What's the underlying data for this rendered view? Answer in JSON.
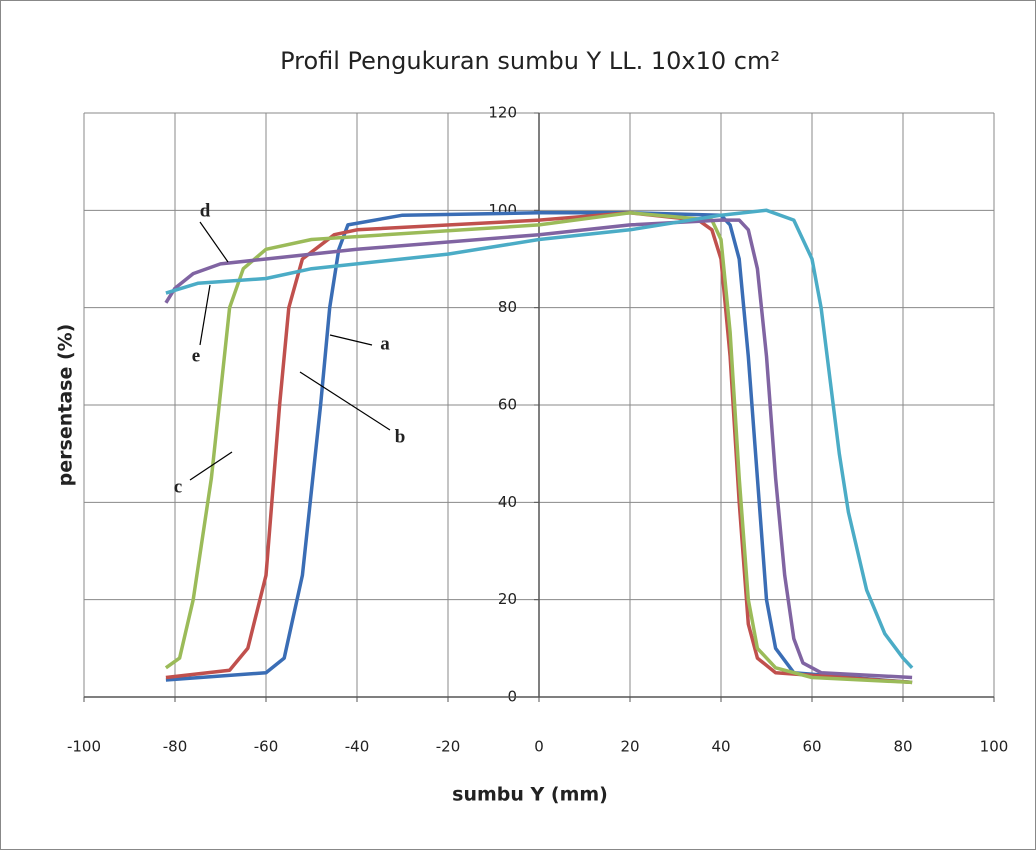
{
  "chart_data": {
    "type": "line",
    "title": "Profil Pengukuran sumbu Y LL. 10x10 cm²",
    "x_label": "sumbu Y (mm)",
    "y_label": "persentase  (%)",
    "xlim": [
      -100,
      100
    ],
    "xticks": [
      -100,
      -80,
      -60,
      -40,
      -20,
      0,
      20,
      40,
      60,
      80,
      100
    ],
    "ylim": [
      0,
      120
    ],
    "yticks": [
      0,
      20,
      40,
      60,
      80,
      100,
      120
    ],
    "grid": true,
    "series": [
      {
        "name": "a",
        "color": "#3a6db5",
        "x": [
          -82,
          -60,
          -56,
          -52,
          -48,
          -46,
          -44,
          -42,
          -30,
          0,
          20,
          40,
          42,
          44,
          46,
          48,
          50,
          52,
          56,
          82
        ],
        "values": [
          3.5,
          5,
          8,
          25,
          60,
          80,
          92,
          97,
          99,
          99.5,
          99.5,
          99,
          97,
          90,
          70,
          45,
          20,
          10,
          5,
          3
        ]
      },
      {
        "name": "b",
        "color": "#c0504d",
        "x": [
          -82,
          -68,
          -64,
          -60,
          -57,
          -55,
          -52,
          -45,
          -40,
          0,
          20,
          35,
          38,
          40,
          42,
          44,
          46,
          48,
          52,
          82
        ],
        "values": [
          4,
          5.5,
          10,
          25,
          60,
          80,
          90,
          95,
          96,
          98,
          99.5,
          98,
          96,
          90,
          70,
          40,
          15,
          8,
          5,
          3
        ]
      },
      {
        "name": "c",
        "color": "#9bbb59",
        "x": [
          -82,
          -79,
          -76,
          -72,
          -68,
          -65,
          -60,
          -50,
          0,
          20,
          38,
          40,
          42,
          44,
          46,
          48,
          52,
          60,
          82
        ],
        "values": [
          6,
          8,
          20,
          45,
          80,
          88,
          92,
          94,
          97,
          99.5,
          98,
          94,
          75,
          45,
          20,
          10,
          6,
          4,
          3
        ]
      },
      {
        "name": "d",
        "color": "#8064a2",
        "x": [
          -82,
          -80,
          -76,
          -70,
          -60,
          -40,
          0,
          20,
          40,
          44,
          46,
          48,
          50,
          52,
          54,
          56,
          58,
          62,
          82
        ],
        "values": [
          81,
          84,
          87,
          89,
          90,
          92,
          95,
          97,
          98,
          98,
          96,
          88,
          70,
          45,
          25,
          12,
          7,
          5,
          4
        ]
      },
      {
        "name": "e",
        "color": "#4bacc6",
        "x": [
          -82,
          -75,
          -60,
          -50,
          -20,
          0,
          20,
          40,
          50,
          56,
          60,
          62,
          64,
          66,
          68,
          72,
          76,
          80,
          82
        ],
        "values": [
          83,
          85,
          86,
          88,
          91,
          94,
          96,
          99,
          100,
          98,
          90,
          80,
          65,
          50,
          38,
          22,
          13,
          8,
          6
        ]
      }
    ]
  }
}
